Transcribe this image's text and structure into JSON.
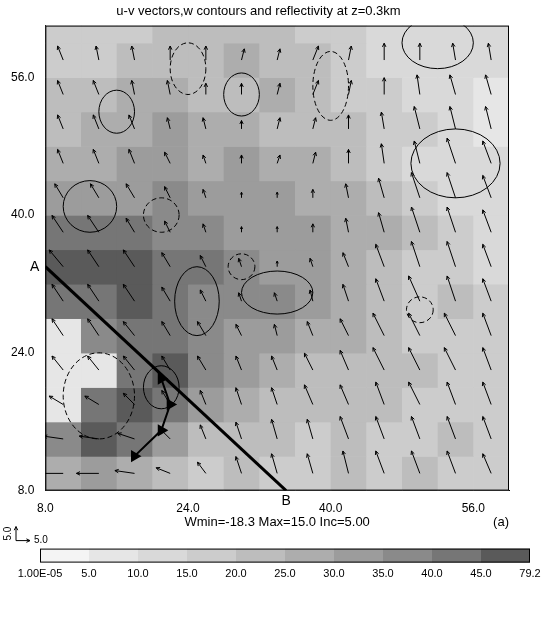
{
  "chart_data": {
    "type": "vector",
    "title": "u-v vectors,w contours and reflectivity at z=0.3km",
    "xlim": [
      8,
      60
    ],
    "ylim": [
      8,
      62
    ],
    "xticks": [
      {
        "value": 8,
        "label": "8.0"
      },
      {
        "value": 24,
        "label": "24.0"
      },
      {
        "value": 40,
        "label": "40.0"
      },
      {
        "value": 56,
        "label": "56.0"
      }
    ],
    "yticks": [
      {
        "value": 8,
        "label": "8.0"
      },
      {
        "value": 24,
        "label": "24.0"
      },
      {
        "value": 40,
        "label": "40.0"
      },
      {
        "value": 56,
        "label": "56.0"
      }
    ],
    "grid": false,
    "reflectivity": {
      "x_edges": [
        8,
        12,
        16,
        20,
        24,
        28,
        32,
        36,
        40,
        44,
        48,
        52,
        56,
        60
      ],
      "y_edges": [
        8,
        12,
        16,
        20,
        24,
        28,
        32,
        36,
        40,
        44,
        48,
        52,
        56,
        60,
        64
      ],
      "values": [
        [
          25,
          30,
          25,
          20,
          15,
          20,
          15,
          15,
          20,
          15,
          20,
          15,
          15
        ],
        [
          35,
          45,
          40,
          30,
          20,
          20,
          20,
          15,
          20,
          15,
          15,
          20,
          15
        ],
        [
          5,
          40,
          45,
          40,
          30,
          25,
          20,
          20,
          20,
          20,
          15,
          15,
          15
        ],
        [
          5,
          5,
          40,
          45,
          35,
          30,
          25,
          20,
          20,
          20,
          20,
          15,
          15
        ],
        [
          5,
          35,
          40,
          40,
          35,
          30,
          30,
          25,
          25,
          20,
          15,
          15,
          15
        ],
        [
          40,
          40,
          45,
          40,
          35,
          35,
          35,
          30,
          25,
          20,
          15,
          20,
          15
        ],
        [
          45,
          45,
          45,
          40,
          40,
          35,
          30,
          30,
          25,
          20,
          15,
          15,
          10
        ],
        [
          40,
          40,
          40,
          35,
          35,
          30,
          30,
          30,
          25,
          25,
          20,
          15,
          10
        ],
        [
          30,
          30,
          30,
          35,
          30,
          30,
          30,
          25,
          25,
          20,
          15,
          10,
          10
        ],
        [
          25,
          25,
          30,
          30,
          25,
          30,
          25,
          25,
          20,
          15,
          10,
          10,
          10
        ],
        [
          20,
          25,
          25,
          30,
          25,
          25,
          20,
          20,
          20,
          15,
          15,
          10,
          5
        ],
        [
          20,
          20,
          25,
          25,
          20,
          20,
          25,
          20,
          15,
          15,
          10,
          10,
          5
        ],
        [
          15,
          15,
          20,
          20,
          20,
          25,
          20,
          20,
          15,
          10,
          10,
          10,
          10
        ],
        [
          15,
          15,
          15,
          20,
          20,
          20,
          20,
          15,
          15,
          10,
          10,
          10,
          10
        ]
      ]
    },
    "colorbar": {
      "ticks": [
        {
          "value": 1e-05,
          "label": "1.00E-05"
        },
        {
          "value": 5,
          "label": "5.0"
        },
        {
          "value": 10,
          "label": "10.0"
        },
        {
          "value": 15,
          "label": "15.0"
        },
        {
          "value": 20,
          "label": "20.0"
        },
        {
          "value": 25,
          "label": "25.0"
        },
        {
          "value": 30,
          "label": "30.0"
        },
        {
          "value": 35,
          "label": "35.0"
        },
        {
          "value": 40,
          "label": "40.0"
        },
        {
          "value": 45,
          "label": "45.0"
        },
        79.2
      ],
      "colors": [
        "#f4f4f4",
        "#e6e6e6",
        "#d9d9d9",
        "#cccccc",
        "#bdbdbd",
        "#adadad",
        "#9c9c9c",
        "#8a8a8a",
        "#767676",
        "#5a5a5a"
      ]
    },
    "wind": {
      "x": [
        10,
        14,
        18,
        22,
        26,
        30,
        34,
        38,
        42,
        46,
        50,
        54,
        58
      ],
      "y": [
        10,
        14,
        18,
        22,
        26,
        30,
        34,
        38,
        42,
        46,
        50,
        54,
        58
      ],
      "u": [
        [
          -8,
          -8,
          -7,
          -5,
          -3,
          -2,
          -2,
          -2,
          -2,
          -3,
          -3,
          -3,
          -3
        ],
        [
          -7,
          -7,
          -6,
          -4,
          -2,
          -2,
          -2,
          -2,
          -3,
          -3,
          -3,
          -3,
          -3
        ],
        [
          -5,
          -5,
          -4,
          -3,
          -2,
          -2,
          -2,
          -3,
          -3,
          -3,
          -4,
          -3,
          -3
        ],
        [
          -4,
          -4,
          -4,
          -3,
          -3,
          -2,
          -2,
          -3,
          -3,
          -4,
          -4,
          -4,
          -3
        ],
        [
          -4,
          -4,
          -4,
          -3,
          -3,
          -2,
          -1,
          -2,
          -3,
          -4,
          -4,
          -4,
          -3
        ],
        [
          -4,
          -4,
          -4,
          -3,
          -2,
          -1,
          -1,
          -1,
          -2,
          -3,
          -4,
          -3,
          -3
        ],
        [
          -5,
          -4,
          -4,
          -3,
          -2,
          -1,
          0,
          -1,
          -2,
          -3,
          -3,
          -3,
          -3
        ],
        [
          -4,
          -4,
          -3,
          -2,
          -1,
          0,
          0,
          0,
          -1,
          -2,
          -3,
          -3,
          -3
        ],
        [
          -3,
          -3,
          -3,
          -2,
          -1,
          0,
          0,
          0,
          -1,
          -2,
          -3,
          -3,
          -3
        ],
        [
          -2,
          -2,
          -2,
          -2,
          -1,
          0,
          1,
          1,
          0,
          -1,
          -2,
          -3,
          -3
        ],
        [
          -2,
          -2,
          -2,
          -1,
          -1,
          0,
          1,
          1,
          0,
          -1,
          -2,
          -2,
          -2
        ],
        [
          -2,
          -2,
          -1,
          -1,
          0,
          0,
          1,
          2,
          1,
          0,
          -1,
          -2,
          -2
        ],
        [
          -2,
          -1,
          -1,
          0,
          0,
          1,
          1,
          2,
          1,
          0,
          0,
          -1,
          -1
        ]
      ],
      "v": [
        [
          0,
          0,
          1,
          2,
          4,
          6,
          7,
          7,
          8,
          8,
          8,
          8,
          7
        ],
        [
          1,
          1,
          2,
          4,
          5,
          6,
          7,
          7,
          8,
          8,
          8,
          8,
          8
        ],
        [
          3,
          3,
          4,
          5,
          5,
          6,
          6,
          7,
          7,
          8,
          8,
          8,
          8
        ],
        [
          5,
          5,
          5,
          5,
          5,
          5,
          5,
          6,
          7,
          8,
          8,
          8,
          8
        ],
        [
          6,
          6,
          5,
          5,
          5,
          4,
          4,
          5,
          6,
          8,
          8,
          8,
          8
        ],
        [
          6,
          6,
          6,
          5,
          4,
          3,
          3,
          4,
          6,
          8,
          9,
          9,
          8
        ],
        [
          6,
          6,
          6,
          5,
          4,
          3,
          2,
          3,
          5,
          8,
          9,
          9,
          8
        ],
        [
          6,
          6,
          5,
          4,
          3,
          2,
          2,
          3,
          5,
          7,
          9,
          9,
          8
        ],
        [
          5,
          5,
          5,
          4,
          3,
          2,
          2,
          3,
          5,
          7,
          9,
          9,
          8
        ],
        [
          5,
          5,
          5,
          4,
          3,
          3,
          3,
          4,
          5,
          7,
          8,
          9,
          8
        ],
        [
          5,
          5,
          5,
          4,
          4,
          3,
          4,
          4,
          5,
          6,
          8,
          8,
          8
        ],
        [
          5,
          5,
          5,
          5,
          4,
          4,
          4,
          5,
          5,
          6,
          7,
          7,
          7
        ],
        [
          5,
          5,
          5,
          5,
          5,
          4,
          4,
          5,
          5,
          6,
          6,
          6,
          6
        ]
      ],
      "scale": {
        "value": 5,
        "label": "5.0"
      }
    },
    "w_contours": [
      {
        "w": 5,
        "center": [
          16,
          52
        ],
        "radii": [
          2,
          2.5
        ]
      },
      {
        "w": 5,
        "center": [
          13,
          41
        ],
        "radii": [
          3,
          3
        ]
      },
      {
        "w": -5,
        "center": [
          21,
          40
        ],
        "radii": [
          2,
          2
        ]
      },
      {
        "w": 5,
        "center": [
          25,
          30
        ],
        "radii": [
          2.5,
          4
        ]
      },
      {
        "w": 5,
        "center": [
          34,
          31
        ],
        "radii": [
          4,
          2.5
        ]
      },
      {
        "w": -5,
        "center": [
          30,
          34
        ],
        "radii": [
          1.5,
          1.5
        ]
      },
      {
        "w": -5,
        "center": [
          40,
          55
        ],
        "radii": [
          2,
          4
        ]
      },
      {
        "w": 5,
        "center": [
          54,
          46
        ],
        "radii": [
          5,
          4
        ]
      },
      {
        "w": 5,
        "center": [
          52,
          60
        ],
        "radii": [
          4,
          3
        ]
      },
      {
        "w": -5,
        "center": [
          50,
          29
        ],
        "radii": [
          1.5,
          1.5
        ]
      },
      {
        "w": -5,
        "center": [
          14,
          19
        ],
        "radii": [
          4,
          5
        ]
      },
      {
        "w": 5,
        "center": [
          21,
          20
        ],
        "radii": [
          2,
          2.5
        ]
      },
      {
        "w": -5,
        "center": [
          24,
          57
        ],
        "radii": [
          2,
          3
        ]
      },
      {
        "w": 5,
        "center": [
          30,
          54
        ],
        "radii": [
          2,
          2.5
        ]
      }
    ],
    "section": {
      "labels": [
        "A",
        "B"
      ],
      "x": [
        8,
        35
      ],
      "y": [
        34,
        8
      ]
    },
    "front": {
      "x": [
        18,
        21,
        22,
        21
      ],
      "y": [
        12,
        15,
        18,
        21
      ],
      "marker": "triangle"
    },
    "annotations": [
      {
        "text": "Wmin=-18.3 Max=15.0 Inc=5.00"
      },
      {
        "text": "(a)"
      }
    ]
  }
}
